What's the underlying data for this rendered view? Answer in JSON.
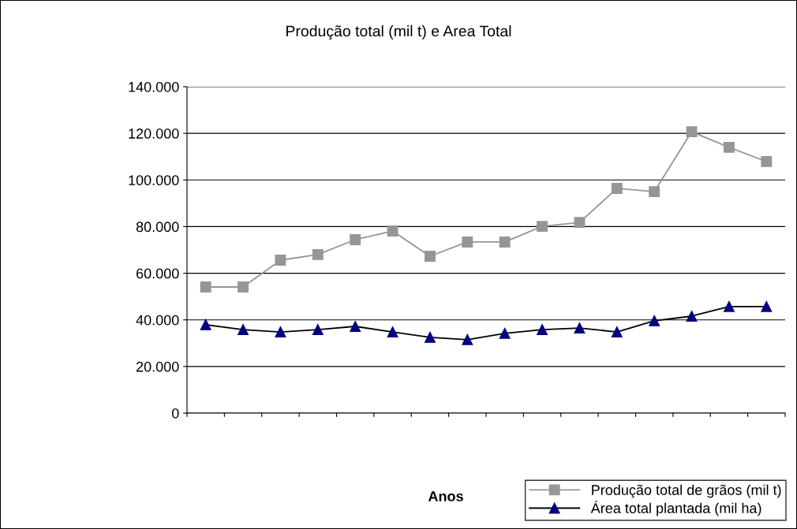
{
  "chart_data": {
    "type": "line",
    "title": "Produção total (mil t) e Area Total",
    "annotations": [
      "Anos"
    ],
    "categories": [
      null,
      null,
      null,
      null,
      null,
      null,
      null,
      null,
      null,
      null,
      null,
      null,
      null,
      null,
      null,
      null
    ],
    "series": [
      {
        "name": "Produção total de grãos (mil t)",
        "color": "#969696",
        "marker": "square",
        "values": [
          54100,
          54100,
          65600,
          68000,
          74400,
          78100,
          67300,
          73400,
          73400,
          80100,
          81800,
          96400,
          95000,
          120700,
          114000,
          107900
        ]
      },
      {
        "name": "Área total plantada (mil ha)",
        "color": "#000080",
        "marker": "triangle",
        "values": [
          37900,
          35800,
          34800,
          35800,
          37200,
          34800,
          32500,
          31500,
          34200,
          35800,
          36500,
          34800,
          39600,
          41600,
          45700,
          45700
        ]
      }
    ],
    "ylim": [
      0,
      140000
    ],
    "yticks": [
      {
        "value": 0,
        "label": "0"
      },
      {
        "value": 20000,
        "label": "20.000"
      },
      {
        "value": 40000,
        "label": "40.000"
      },
      {
        "value": 60000,
        "label": "60.000"
      },
      {
        "value": 80000,
        "label": "80.000"
      },
      {
        "value": 100000,
        "label": "100.000"
      },
      {
        "value": 120000,
        "label": "120.000"
      },
      {
        "value": 140000,
        "label": "140.000"
      }
    ],
    "grid": "y",
    "legend": "bottom right",
    "line_style": "solid"
  }
}
